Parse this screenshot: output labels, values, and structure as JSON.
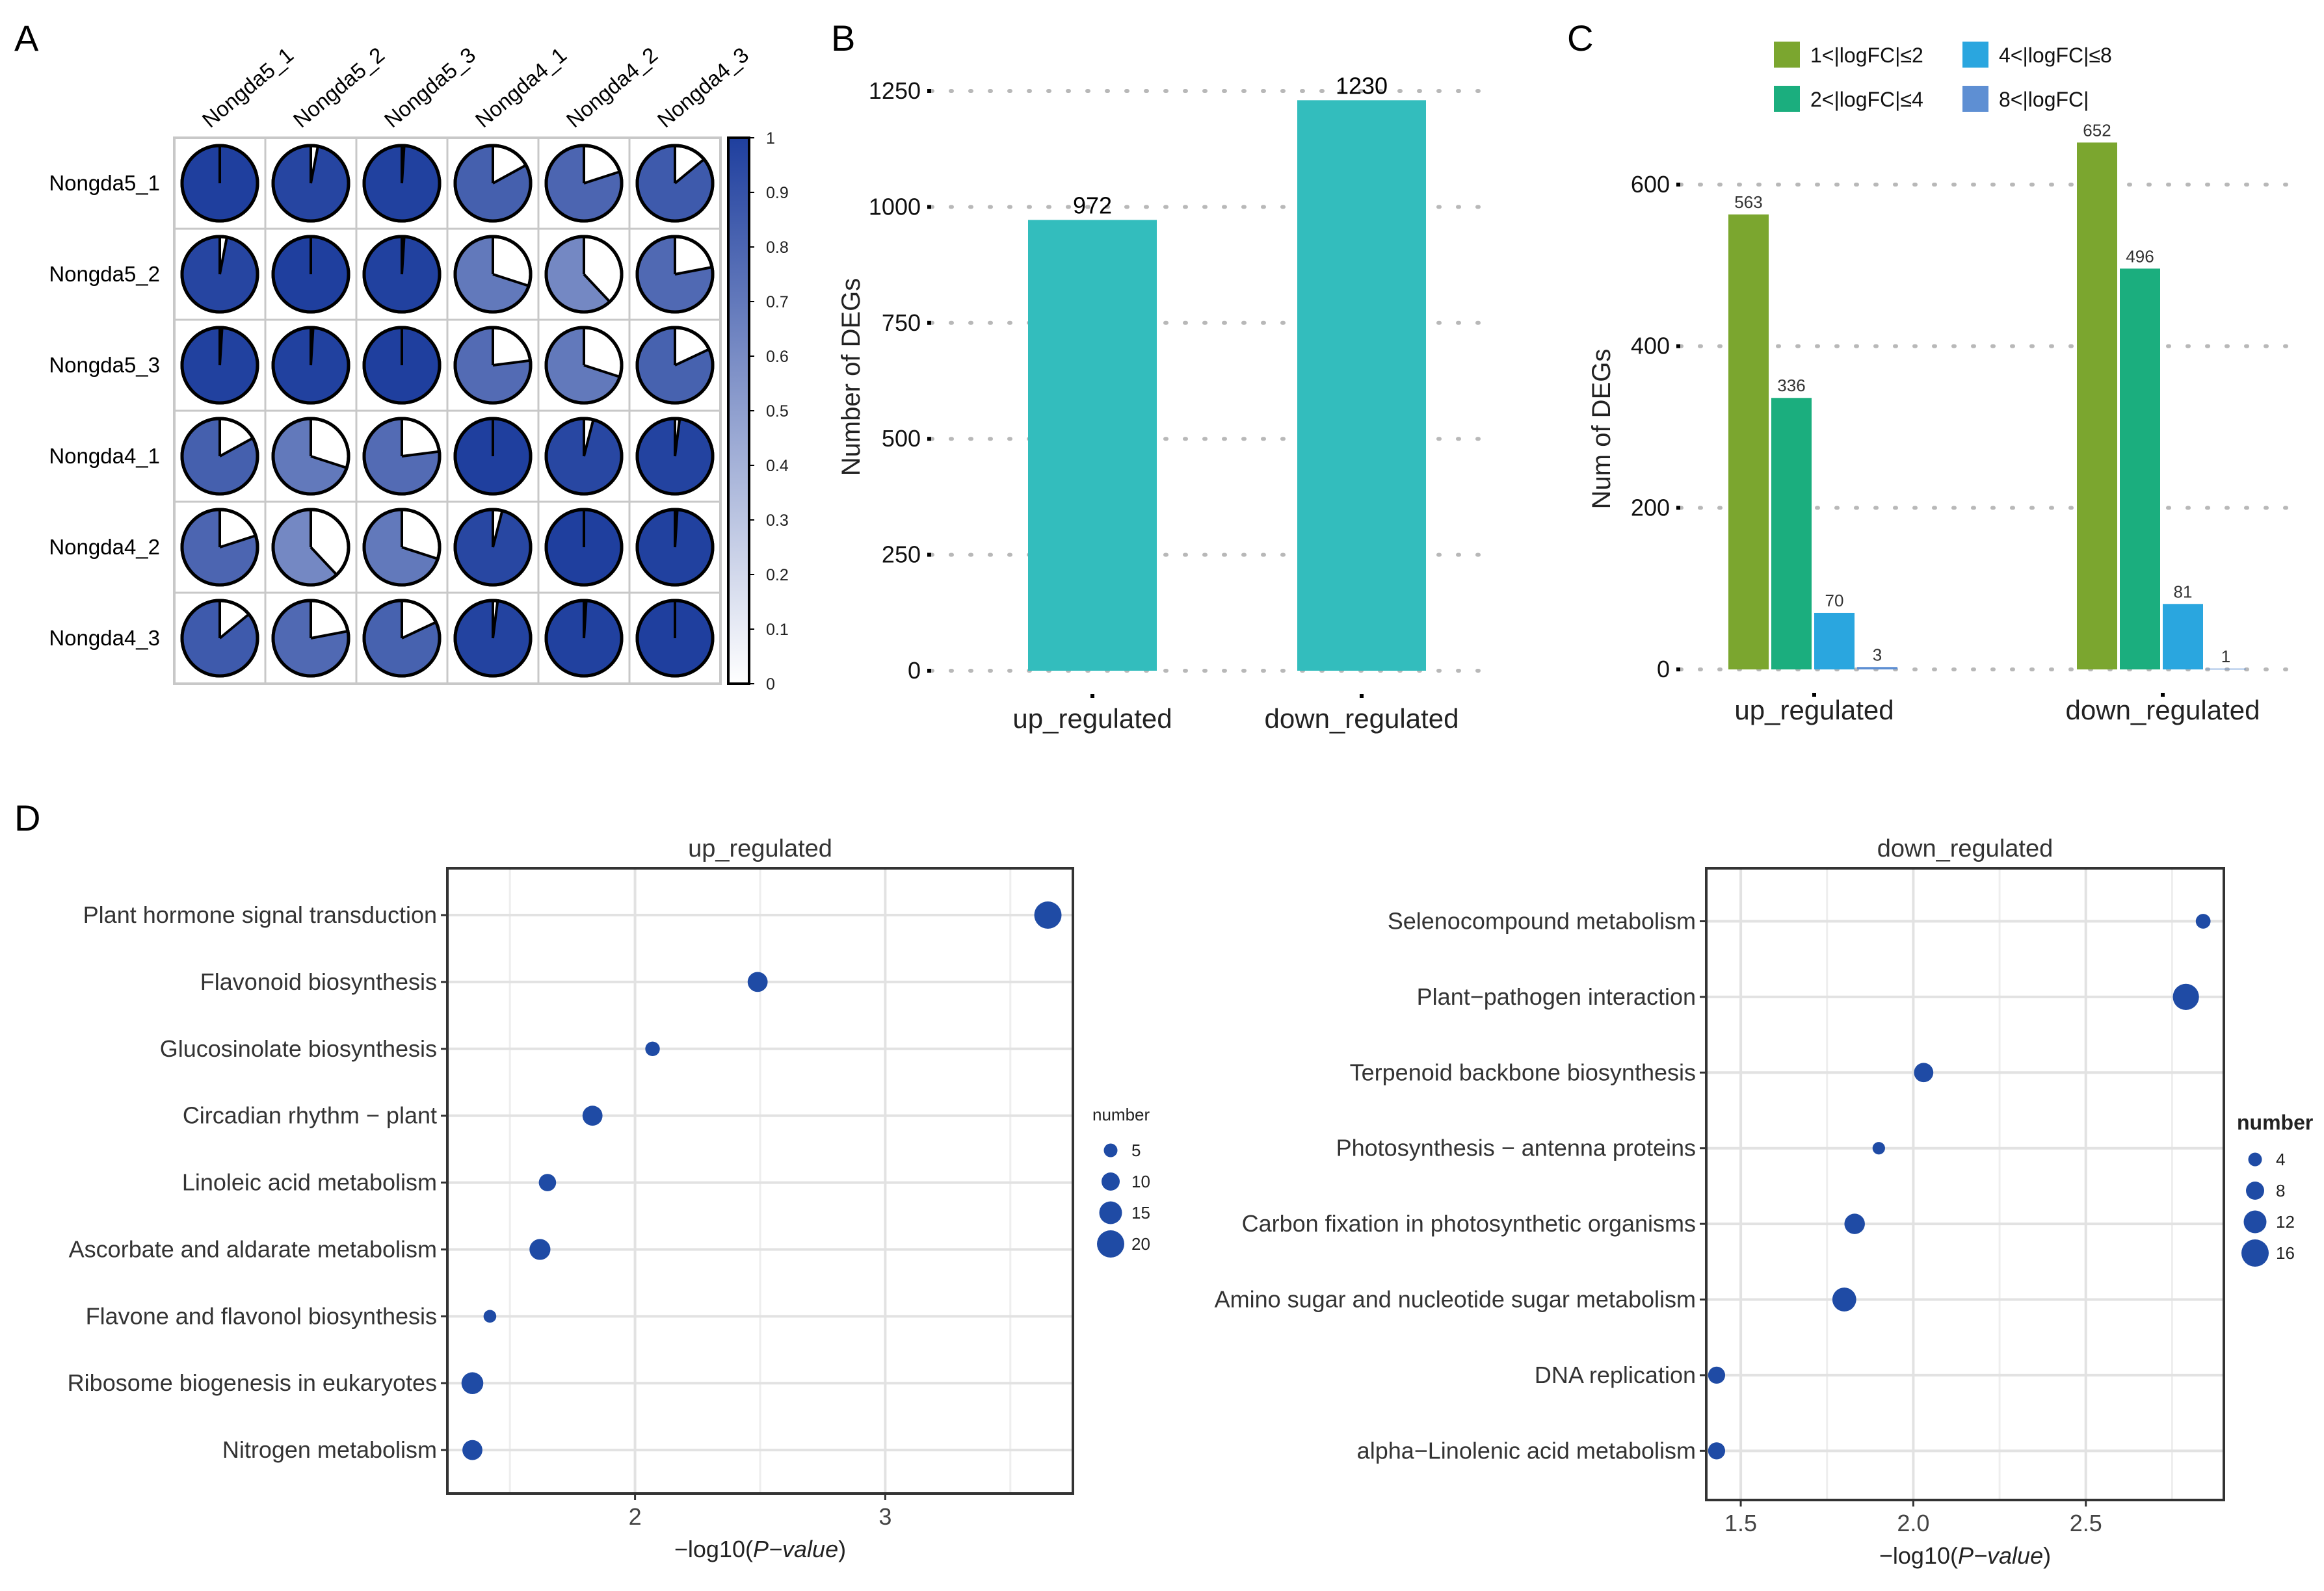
{
  "colors": {
    "corr_dark": "#1F3F9E",
    "teal": "#33BDBD",
    "c_green": "#7BA62F",
    "c_teal": "#1BAE7E",
    "c_blue": "#2AA6DF",
    "c_lightblue": "#5E8FD3",
    "dot": "#1F4BA5",
    "grid": "#b8b8b8"
  },
  "chart_data": [
    {
      "panel": "A",
      "type": "heatmap",
      "style": "pie-correlation",
      "rows": [
        "Nongda5_1",
        "Nongda5_2",
        "Nongda5_3",
        "Nongda4_1",
        "Nongda4_2",
        "Nongda4_3"
      ],
      "columns": [
        "Nongda5_1",
        "Nongda5_2",
        "Nongda5_3",
        "Nongda4_1",
        "Nongda4_2",
        "Nongda4_3"
      ],
      "values": [
        [
          1.0,
          0.97,
          0.99,
          0.83,
          0.8,
          0.86
        ],
        [
          0.97,
          1.0,
          0.99,
          0.7,
          0.62,
          0.78
        ],
        [
          0.99,
          0.99,
          1.0,
          0.77,
          0.7,
          0.82
        ],
        [
          0.83,
          0.7,
          0.77,
          1.0,
          0.96,
          0.98
        ],
        [
          0.8,
          0.62,
          0.7,
          0.96,
          1.0,
          0.99
        ],
        [
          0.86,
          0.78,
          0.82,
          0.98,
          0.99,
          1.0
        ]
      ],
      "colorbar": {
        "ticks": [
          "1",
          "0.9",
          "0.8",
          "0.7",
          "0.6",
          "0.5",
          "0.4",
          "0.3",
          "0.2",
          "0.1",
          "0"
        ]
      }
    },
    {
      "panel": "B",
      "type": "bar",
      "categories": [
        "up_regulated",
        "down_regulated"
      ],
      "values": [
        972,
        1230
      ],
      "value_labels": [
        "972",
        "1230"
      ],
      "ylabel": "Number of DEGs",
      "xlabel": "",
      "ylim": [
        0,
        1250
      ],
      "yticks": [
        0,
        250,
        500,
        750,
        1000,
        1250
      ],
      "ytick_labels": [
        "0",
        "250",
        "500",
        "750",
        "1000",
        "1250"
      ],
      "grid": "dotted-horizontal"
    },
    {
      "panel": "C",
      "type": "bar",
      "categories": [
        "up_regulated",
        "down_regulated"
      ],
      "series": [
        {
          "name": "1<|logFC|≤2",
          "values": [
            563,
            652
          ],
          "labels": [
            "563",
            "652"
          ]
        },
        {
          "name": "2<|logFC|≤4",
          "values": [
            336,
            496
          ],
          "labels": [
            "336",
            "496"
          ]
        },
        {
          "name": "4<|logFC|≤8",
          "values": [
            70,
            81
          ],
          "labels": [
            "70",
            "81"
          ]
        },
        {
          "name": "8<|logFC|",
          "values": [
            3,
            1
          ],
          "labels": [
            "3",
            "1"
          ]
        }
      ],
      "ylabel": "Num of DEGs",
      "xlabel": "",
      "ylim": [
        0,
        680
      ],
      "yticks": [
        0,
        200,
        400,
        600
      ],
      "ytick_labels": [
        "0",
        "200",
        "400",
        "600"
      ],
      "legend": "top",
      "grid": "dotted-horizontal"
    },
    {
      "panel": "D",
      "type": "scatter",
      "title": "up_regulated",
      "xlabel_prefix": "−log10(",
      "xlabel_italic": "P−value",
      "xlabel_suffix": ")",
      "xlim": [
        1.25,
        3.75
      ],
      "xticks": [
        2,
        3
      ],
      "xtick_labels": [
        "2",
        "3"
      ],
      "categories": [
        "Plant hormone signal transduction",
        "Flavonoid biosynthesis",
        "Glucosinolate biosynthesis",
        "Circadian rhythm − plant",
        "Linoleic acid metabolism",
        "Ascorbate and aldarate metabolism",
        "Flavone and flavonol biosynthesis",
        "Ribosome biogenesis in eukaryotes",
        "Nitrogen metabolism"
      ],
      "x": [
        3.65,
        2.49,
        2.07,
        1.83,
        1.65,
        1.62,
        1.42,
        1.35,
        1.35
      ],
      "size": [
        20,
        12,
        6,
        12,
        9,
        13,
        4,
        14,
        12
      ],
      "legend_title": "number",
      "legend_values": [
        5,
        10,
        15,
        20
      ],
      "legend_labels": [
        "5",
        "10",
        "15",
        "20"
      ]
    },
    {
      "panel": "D",
      "type": "scatter",
      "title": "down_regulated",
      "xlabel_prefix": "−log10(",
      "xlabel_italic": "P−value",
      "xlabel_suffix": ")",
      "xlim": [
        1.4,
        2.9
      ],
      "xticks": [
        1.5,
        2.0,
        2.5
      ],
      "xtick_labels": [
        "1.5",
        "2.0",
        "2.5"
      ],
      "categories": [
        "Selenocompound metabolism",
        "Plant−pathogen interaction",
        "Terpenoid backbone biosynthesis",
        "Photosynthesis − antenna proteins",
        "Carbon fixation in photosynthetic organisms",
        "Amino sugar and nucleotide sugar metabolism",
        "DNA replication",
        "alpha−Linolenic acid metabolism"
      ],
      "x": [
        2.84,
        2.79,
        2.03,
        1.9,
        1.83,
        1.8,
        1.43,
        1.43
      ],
      "size": [
        5,
        15,
        9,
        3,
        10,
        13,
        7,
        7
      ],
      "legend_title": "number",
      "legend_values": [
        4,
        8,
        12,
        16
      ],
      "legend_labels": [
        "4",
        "8",
        "12",
        "16"
      ]
    }
  ],
  "panel_labels": [
    "A",
    "B",
    "C",
    "D"
  ]
}
